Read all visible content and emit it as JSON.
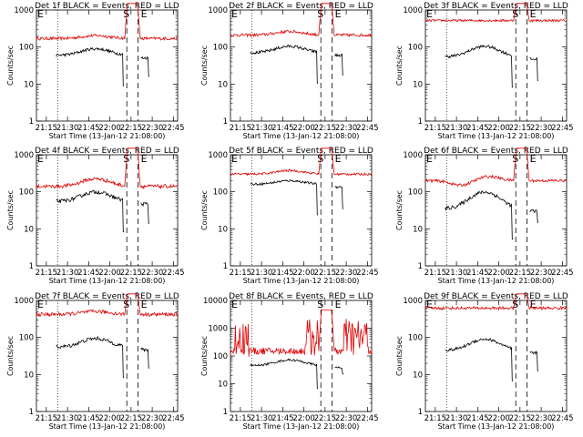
{
  "chart_data": {
    "type": "line",
    "x_tick_labels": [
      "21:15",
      "21:30",
      "21:45",
      "22:00",
      "22:15",
      "22:30",
      "22:45"
    ],
    "x_range_minutes": [
      0,
      100
    ],
    "xlabel": "Start Time (13-Jan-12 21:08:00)",
    "ylabel": "Counts/sec",
    "yscale": "log",
    "y_tick_labels": [
      "1",
      "10",
      "100",
      "1000"
    ],
    "markers": {
      "start": "S",
      "end": "E",
      "start_minute": 64,
      "end_minute": 72,
      "dotted_minute": 15
    },
    "panels": [
      {
        "title": "Det 1f BLACK = Events, RED = LLD",
        "ylim": [
          1,
          1000
        ],
        "red": {
          "base": 170,
          "profile": "hump",
          "hump": 1.2,
          "noise": 0.04,
          "peak": 1500
        },
        "black": {
          "base": 60,
          "profile": "hump",
          "hump": 1.5,
          "noise": 0.04,
          "end_drop": 32
        }
      },
      {
        "title": "Det 2f BLACK = Events, RED = LLD",
        "ylim": [
          1,
          1000
        ],
        "red": {
          "base": 210,
          "profile": "hump",
          "hump": 1.25,
          "noise": 0.04,
          "peak": 1500
        },
        "black": {
          "base": 70,
          "profile": "hump",
          "hump": 1.5,
          "noise": 0.04,
          "end_drop": 35
        }
      },
      {
        "title": "Det 3f BLACK = Events, RED = LLD",
        "ylim": [
          1,
          1000
        ],
        "red": {
          "base": 520,
          "profile": "flat",
          "hump": 1.1,
          "noise": 0.03,
          "peak": 1500
        },
        "black": {
          "base": 55,
          "profile": "hump",
          "hump": 1.9,
          "noise": 0.04,
          "end_drop": 25
        }
      },
      {
        "title": "Det 4f BLACK = Events, RED = LLD",
        "ylim": [
          1,
          1000
        ],
        "red": {
          "base": 140,
          "profile": "hump",
          "hump": 1.6,
          "noise": 0.05,
          "peak": 1500
        },
        "black": {
          "base": 55,
          "profile": "hump",
          "hump": 1.8,
          "noise": 0.05,
          "end_drop": 28
        }
      },
      {
        "title": "Det 5f BLACK = Events, RED = LLD",
        "ylim": [
          1,
          1000
        ],
        "red": {
          "base": 300,
          "profile": "hump",
          "hump": 1.25,
          "noise": 0.03,
          "peak": 1500
        },
        "black": {
          "base": 160,
          "profile": "hump",
          "hump": 1.25,
          "noise": 0.03,
          "end_drop": 70
        }
      },
      {
        "title": "Det 6f BLACK = Events, RED = LLD",
        "ylim": [
          1,
          1000
        ],
        "red": {
          "base": 200,
          "profile": "dip",
          "hump": 1.3,
          "noise": 0.04,
          "peak": 1500
        },
        "black": {
          "base": 35,
          "profile": "hump",
          "hump": 2.8,
          "noise": 0.05,
          "end_drop": 30
        }
      },
      {
        "title": "Det 7f BLACK = Events, RED = LLD",
        "ylim": [
          1,
          1000
        ],
        "red": {
          "base": 420,
          "profile": "hump",
          "hump": 1.2,
          "noise": 0.05,
          "peak": 1500
        },
        "black": {
          "base": 55,
          "profile": "hump",
          "hump": 1.7,
          "noise": 0.05,
          "end_drop": 30
        }
      },
      {
        "title": "Det 8f BLACK = Events, RED = LLD",
        "ylim": [
          1,
          10000
        ],
        "red": {
          "base": 150,
          "profile": "noisy",
          "hump": 1.5,
          "noise": 0.12,
          "peak": 4500
        },
        "black": {
          "base": 45,
          "profile": "hump",
          "hump": 1.6,
          "noise": 0.04,
          "end_drop": 45
        }
      },
      {
        "title": "Det 9f BLACK = Events, RED = LLD",
        "ylim": [
          1,
          1000
        ],
        "red": {
          "base": 620,
          "profile": "flat",
          "hump": 1.1,
          "noise": 0.04,
          "peak": 1500
        },
        "black": {
          "base": 45,
          "profile": "hump",
          "hump": 2.0,
          "noise": 0.04,
          "end_drop": 25
        }
      }
    ]
  }
}
